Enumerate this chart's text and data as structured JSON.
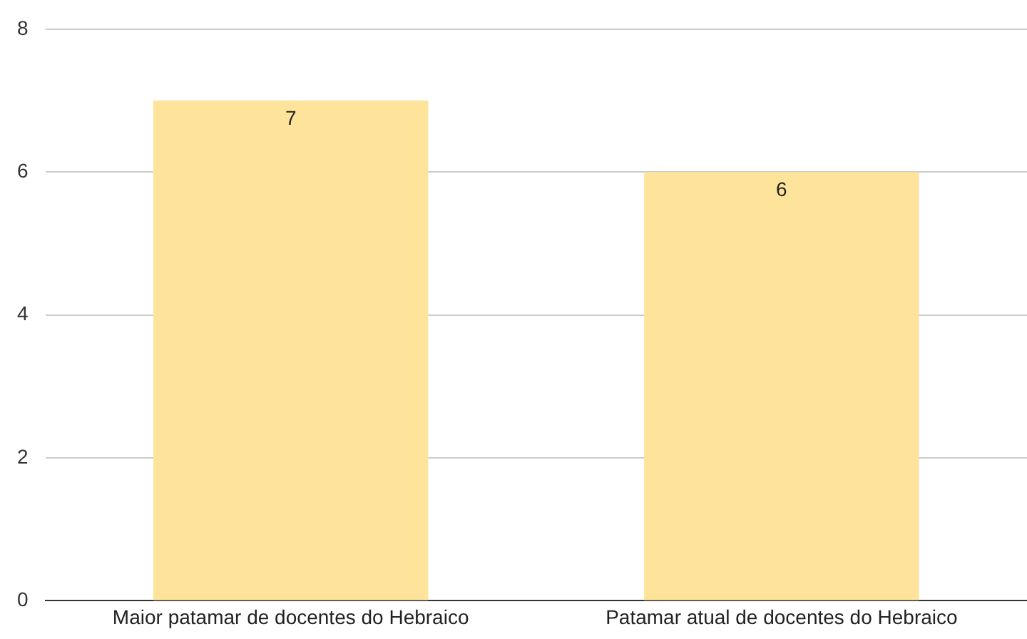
{
  "chart_data": {
    "type": "bar",
    "categories": [
      "Maior patamar de docentes do Hebraico",
      "Patamar atual de docentes do Hebraico"
    ],
    "values": [
      7,
      6
    ],
    "color": "#fde49a",
    "ylim": [
      0,
      8
    ],
    "yticks": [
      0,
      2,
      4,
      6,
      8
    ],
    "grid": "y",
    "data_labels": true,
    "legend": false
  }
}
